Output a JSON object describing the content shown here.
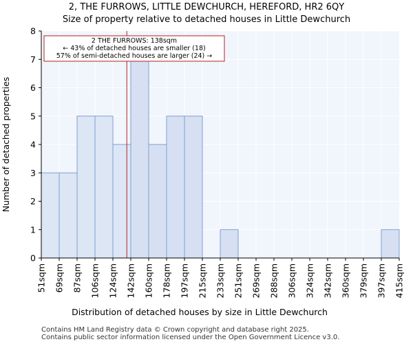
{
  "chart_data": {
    "type": "bar",
    "title_lines": [
      "2, THE FURROWS, LITTLE DEWCHURCH, HEREFORD, HR2 6QY",
      "Size of property relative to detached houses in Little Dewchurch"
    ],
    "xlabel": "Distribution of detached houses by size in Little Dewchurch",
    "ylabel": "Number of detached properties",
    "bin_edges_labels": [
      "51sqm",
      "69sqm",
      "87sqm",
      "106sqm",
      "124sqm",
      "142sqm",
      "160sqm",
      "178sqm",
      "197sqm",
      "215sqm",
      "233sqm",
      "251sqm",
      "269sqm",
      "288sqm",
      "306sqm",
      "324sqm",
      "342sqm",
      "360sqm",
      "379sqm",
      "397sqm",
      "415sqm"
    ],
    "values": [
      3,
      3,
      5,
      5,
      4,
      7,
      4,
      5,
      5,
      0,
      1,
      0,
      0,
      0,
      0,
      0,
      0,
      0,
      0,
      1
    ],
    "highlight_count": 5,
    "ylim": [
      0,
      8
    ],
    "yticks": [
      0,
      1,
      2,
      3,
      4,
      5,
      6,
      7,
      8
    ],
    "grid": true,
    "marker_value_sqm": 138,
    "annotation": {
      "lines": [
        "2 THE FURROWS: 138sqm",
        "← 43% of detached houses are smaller (18)",
        "57% of semi-detached houses are larger (24) →"
      ]
    },
    "colors": {
      "bar_highlight": "#dde6f5",
      "bar": "#d6e0f2",
      "bar_edge": "#7f9fd4",
      "plot_bg": "#f1f5fc",
      "grid": "#ffffff",
      "marker": "#b22222"
    }
  },
  "footer": {
    "line1": "Contains HM Land Registry data © Crown copyright and database right 2025.",
    "line2": "Contains public sector information licensed under the Open Government Licence v3.0."
  }
}
